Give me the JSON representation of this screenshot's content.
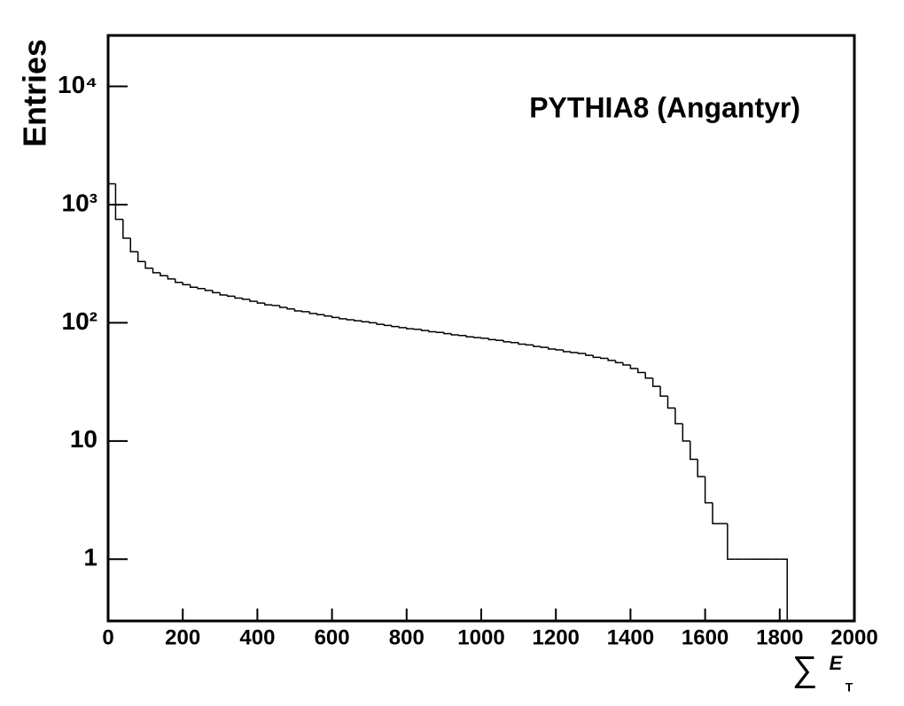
{
  "chart_data": {
    "type": "histogram",
    "annotation": "PYTHIA8 (Angantyr)",
    "y_label": "Entries",
    "x_label": [
      "∑",
      "E",
      "T"
    ],
    "color": "#000000",
    "log_y": true,
    "grid": false,
    "xlim": [
      0,
      2000
    ],
    "xticks": [
      0,
      200,
      400,
      600,
      800,
      1000,
      1200,
      1400,
      1600,
      1800,
      2000
    ],
    "ylim": [
      0.3,
      27000
    ],
    "yticks": [
      1,
      10,
      {
        "value": 100,
        "label": "10²"
      },
      {
        "value": 1000,
        "label": "10³"
      },
      {
        "value": 10000,
        "label": "10⁴"
      }
    ],
    "bins": [
      0,
      20,
      40,
      60,
      80,
      100,
      120,
      140,
      160,
      180,
      200,
      220,
      240,
      260,
      280,
      300,
      320,
      340,
      360,
      380,
      400,
      420,
      440,
      460,
      480,
      500,
      520,
      540,
      560,
      580,
      600,
      620,
      640,
      660,
      680,
      700,
      720,
      740,
      760,
      780,
      800,
      820,
      840,
      860,
      880,
      900,
      920,
      940,
      960,
      980,
      1000,
      1020,
      1040,
      1060,
      1080,
      1100,
      1120,
      1140,
      1160,
      1180,
      1200,
      1220,
      1240,
      1260,
      1280,
      1300,
      1320,
      1340,
      1360,
      1380,
      1400,
      1420,
      1440,
      1460,
      1480,
      1500,
      1520,
      1540,
      1560,
      1580,
      1600,
      1620,
      1640,
      1660,
      1680,
      1700,
      1720,
      1740,
      1760,
      1780,
      1800,
      1820
    ],
    "values": [
      1500,
      750,
      520,
      400,
      330,
      290,
      265,
      250,
      235,
      220,
      210,
      200,
      195,
      188,
      180,
      172,
      168,
      162,
      158,
      152,
      147,
      142,
      140,
      135,
      131,
      126,
      124,
      120,
      117,
      114,
      111,
      108,
      106,
      104,
      102,
      100,
      97,
      95,
      93,
      91,
      89,
      88,
      86,
      84,
      83,
      81,
      79,
      78,
      76,
      75,
      74,
      72,
      71,
      69,
      68,
      66,
      65,
      63,
      62,
      60,
      59,
      57,
      56,
      55,
      53,
      51,
      50,
      48,
      46,
      44,
      41,
      38,
      34,
      29,
      24,
      19,
      14,
      10,
      7,
      5,
      3,
      2,
      2,
      1,
      1,
      1,
      1,
      1,
      1,
      1,
      1
    ]
  }
}
